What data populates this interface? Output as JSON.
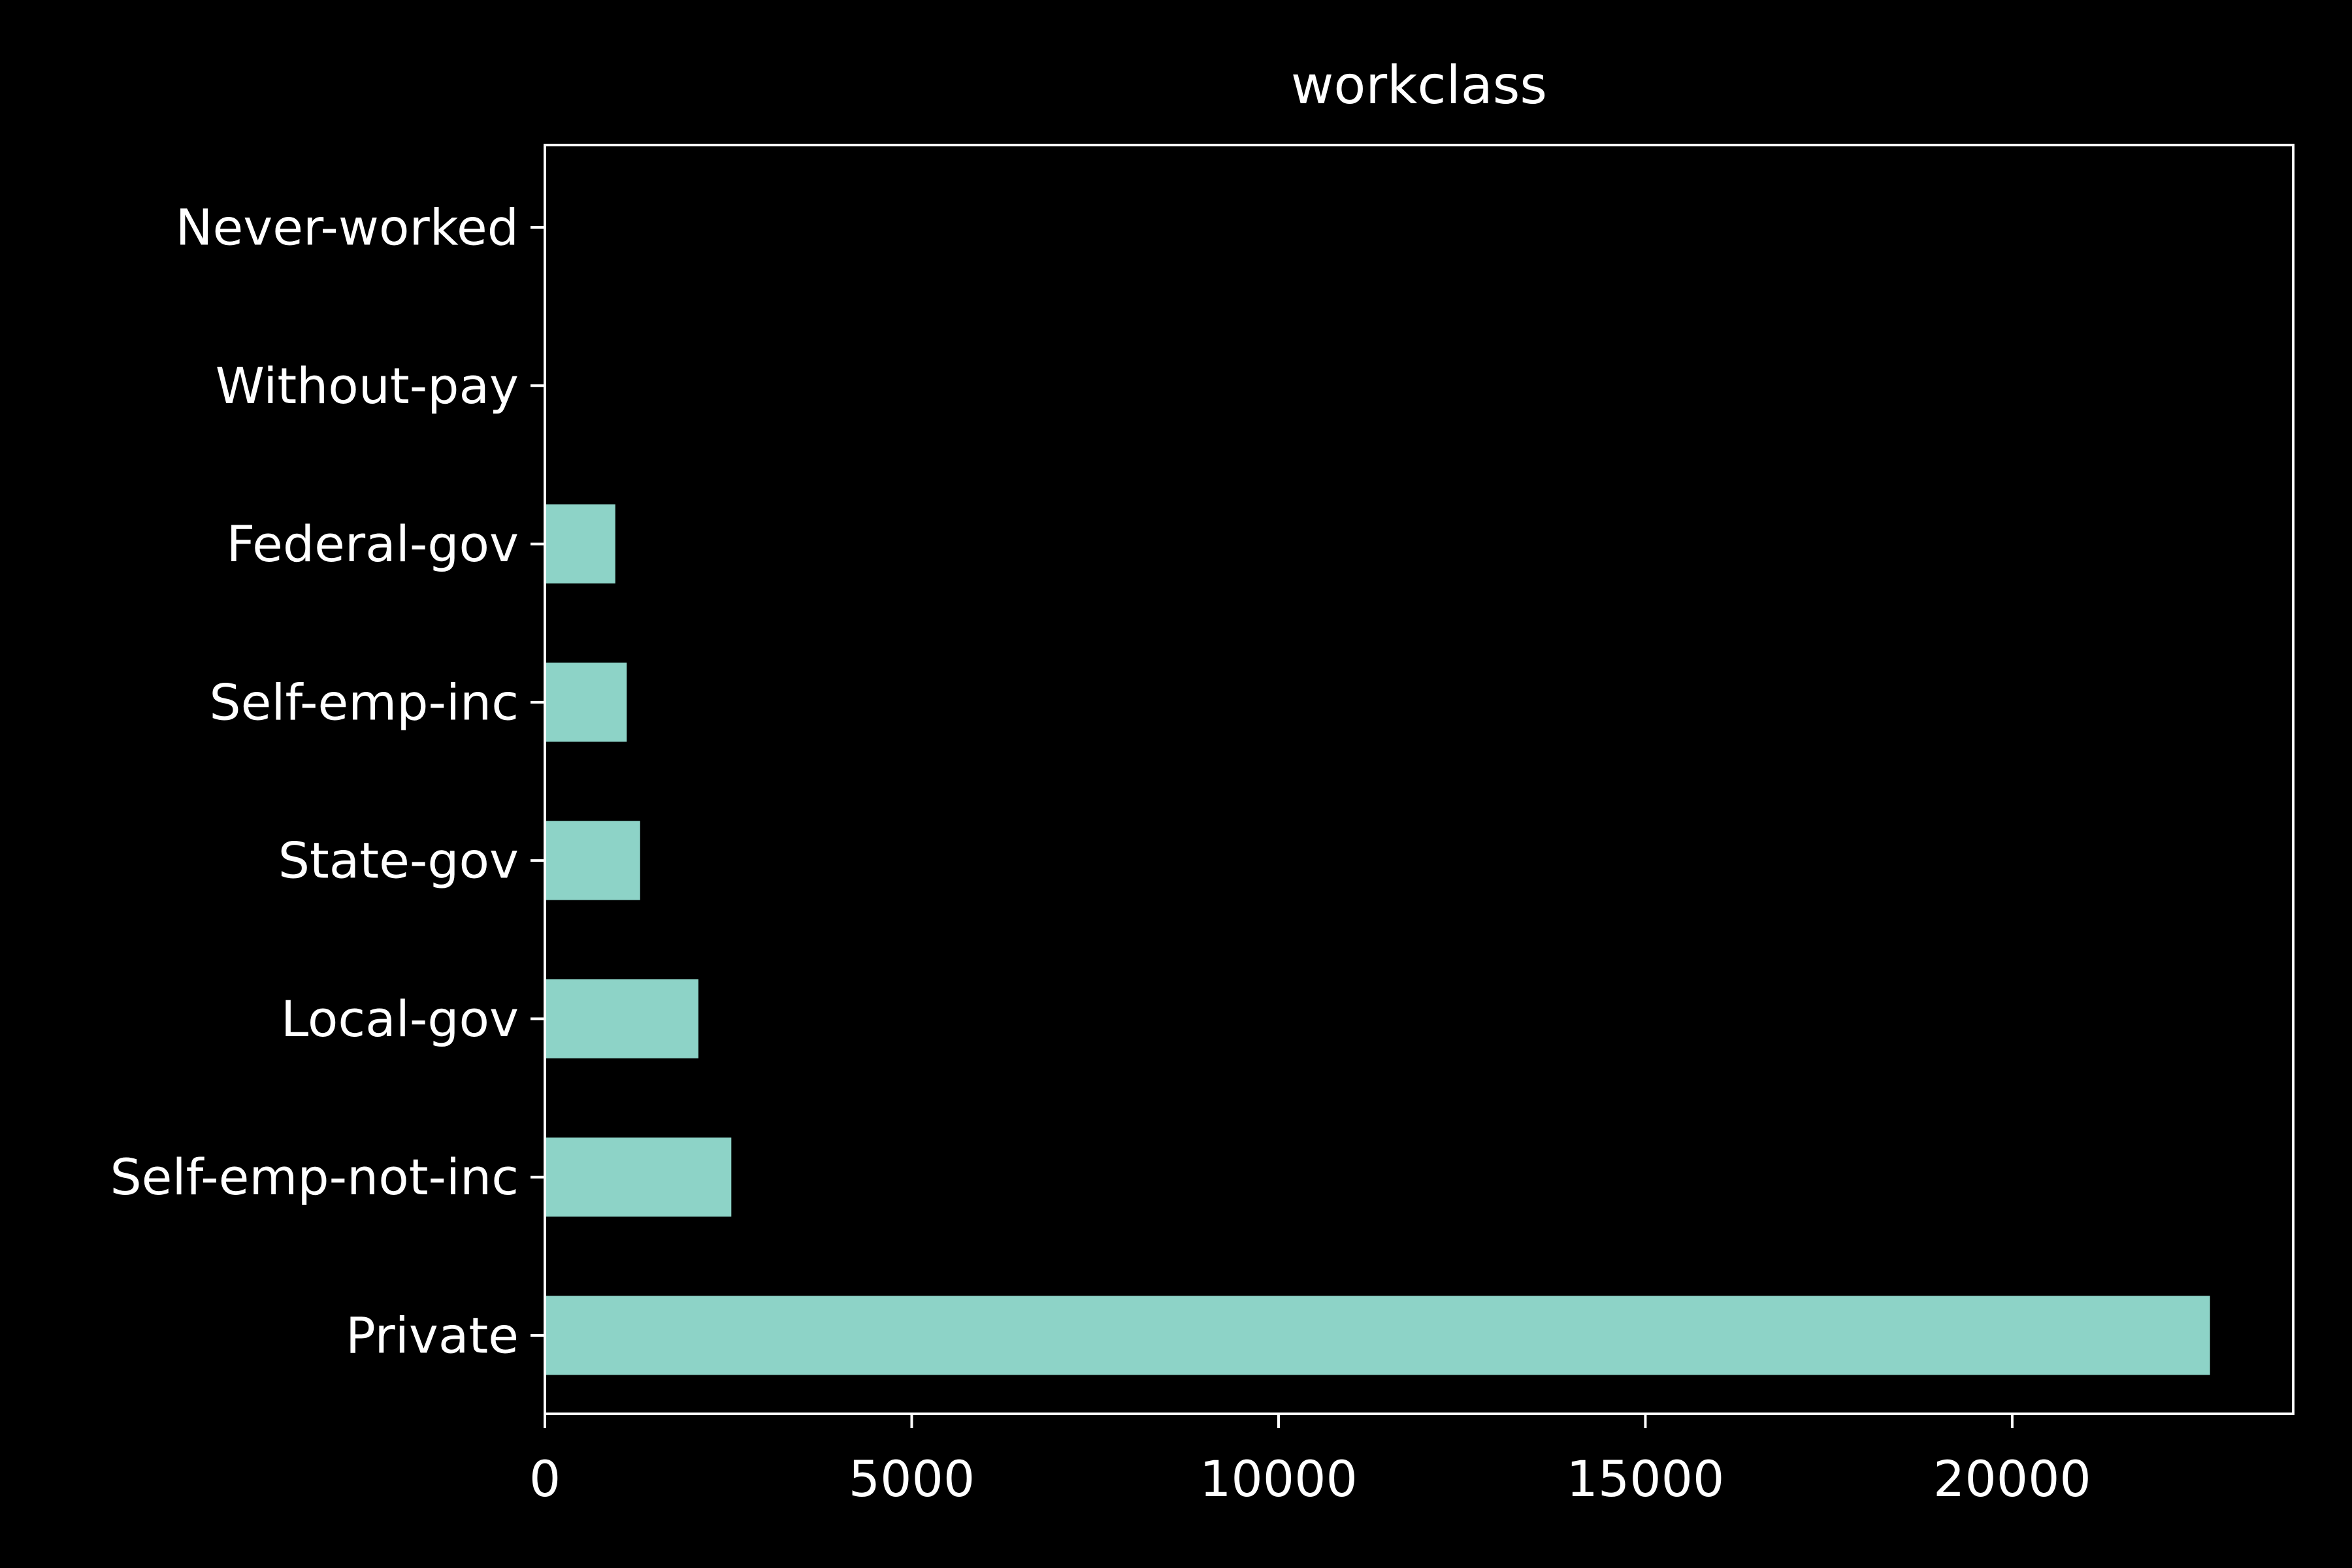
{
  "colors": {
    "background": "#000000",
    "foreground": "#ffffff",
    "bar": "#8dd3c7"
  },
  "chart_data": {
    "type": "bar",
    "orientation": "horizontal",
    "title": "workclass",
    "xlabel": "",
    "ylabel": "",
    "categories": [
      "Private",
      "Self-emp-not-inc",
      "Local-gov",
      "State-gov",
      "Self-emp-inc",
      "Federal-gov",
      "Without-pay",
      "Never-worked"
    ],
    "values": [
      22696,
      2541,
      2093,
      1298,
      1116,
      960,
      14,
      7
    ],
    "xlim": [
      0,
      23830
    ],
    "xticks": [
      0,
      5000,
      10000,
      15000,
      20000
    ],
    "grid": false,
    "legend": "none"
  }
}
